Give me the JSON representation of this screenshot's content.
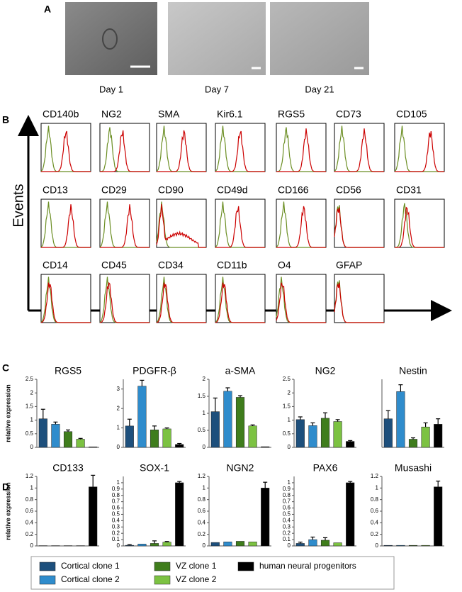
{
  "panel_labels": [
    "A",
    "B",
    "C",
    "D"
  ],
  "timepoints": [
    "Day 1",
    "Day 7",
    "Day 21"
  ],
  "histograms": {
    "y_axis_label": "Events",
    "markers": [
      "CD140b",
      "NG2",
      "SMA",
      "Kir6.1",
      "RGS5",
      "CD73",
      "CD105",
      "CD13",
      "CD29",
      "CD90",
      "CD49d",
      "CD166",
      "CD56",
      "CD31",
      "CD14",
      "CD45",
      "CD34",
      "CD11b",
      "O4",
      "GFAP"
    ]
  },
  "legend": [
    {
      "name": "Cortical clone 1",
      "color": "#1d4f7c"
    },
    {
      "name": "Cortical clone 2",
      "color": "#2f8ccc"
    },
    {
      "name": "VZ clone 1",
      "color": "#3f7d1c"
    },
    {
      "name": "VZ clone 2",
      "color": "#7cc242"
    },
    {
      "name": "human neural progenitors",
      "color": "#000000"
    }
  ],
  "chart_data": [
    {
      "type": "bar",
      "title": "RGS5",
      "ylabel": "relative expression",
      "ylim": [
        0,
        2.5
      ],
      "yticks": [
        0,
        0.5,
        1,
        1.5,
        2,
        2.5
      ],
      "values": [
        1.05,
        0.85,
        0.58,
        0.3,
        0.02
      ],
      "errors": [
        0.35,
        0.08,
        0.06,
        0.03,
        null
      ]
    },
    {
      "type": "bar",
      "title": "PDGFR-β",
      "ylim": [
        0,
        3.5
      ],
      "yticks": [
        0,
        1,
        2,
        3
      ],
      "values": [
        1.1,
        3.15,
        0.9,
        0.95,
        0.15
      ],
      "errors": [
        0.35,
        0.3,
        0.2,
        0.05,
        0.05
      ]
    },
    {
      "type": "bar",
      "title": "a-SMA",
      "ylim": [
        0,
        2
      ],
      "yticks": [
        0,
        0.5,
        1,
        1.5,
        2
      ],
      "values": [
        1.05,
        1.65,
        1.47,
        0.63,
        0.02
      ],
      "errors": [
        0.4,
        0.1,
        0.05,
        0.03,
        null
      ]
    },
    {
      "type": "bar",
      "title": "NG2",
      "ylim": [
        0,
        2.5
      ],
      "yticks": [
        0,
        0.5,
        1,
        1.5,
        2,
        2.5
      ],
      "values": [
        1.02,
        0.8,
        1.07,
        0.95,
        0.22
      ],
      "errors": [
        0.1,
        0.1,
        0.2,
        0.07,
        0.03
      ]
    },
    {
      "type": "bar",
      "title": "Nestin",
      "ylim": [
        0,
        2.5
      ],
      "values": [
        1.05,
        2.05,
        0.3,
        0.75,
        0.85
      ],
      "errors": [
        0.3,
        0.25,
        0.05,
        0.15,
        0.2
      ]
    },
    {
      "type": "bar",
      "title": "CD133",
      "ylabel": "relative expression",
      "ylim": [
        0,
        1.2
      ],
      "yticks": [
        0,
        0.2,
        0.4,
        0.6,
        0.8,
        1,
        1.2
      ],
      "values": [
        0.005,
        0.005,
        0.005,
        0.005,
        1.02
      ],
      "errors": [
        null,
        null,
        null,
        null,
        0.2
      ]
    },
    {
      "type": "bar",
      "title": "SOX-1",
      "ylim": [
        0,
        1.1
      ],
      "yticks": [
        0,
        0.1,
        0.2,
        0.3,
        0.4,
        0.5,
        0.6,
        0.7,
        0.8,
        0.9,
        1
      ],
      "values": [
        0.01,
        0.03,
        0.04,
        0.06,
        1.0
      ],
      "errors": [
        0.01,
        null,
        0.04,
        0.01,
        0.02
      ]
    },
    {
      "type": "bar",
      "title": "NGN2",
      "ylim": [
        0,
        1.2
      ],
      "yticks": [
        0,
        0.2,
        0.4,
        0.6,
        0.8,
        1,
        1.2
      ],
      "values": [
        0.06,
        0.07,
        0.08,
        0.07,
        1.0
      ],
      "errors": [
        null,
        null,
        null,
        null,
        0.1
      ]
    },
    {
      "type": "bar",
      "title": "PAX6",
      "ylim": [
        0,
        1.1
      ],
      "yticks": [
        0,
        0.1,
        0.2,
        0.3,
        0.4,
        0.5,
        0.6,
        0.7,
        0.8,
        0.9,
        1
      ],
      "values": [
        0.04,
        0.1,
        0.09,
        0.05,
        1.0
      ],
      "errors": [
        0.02,
        0.04,
        0.04,
        null,
        0.02
      ]
    },
    {
      "type": "bar",
      "title": "Musashi",
      "ylim": [
        0,
        1.2
      ],
      "yticks": [
        0,
        0.2,
        0.4,
        0.6,
        0.8,
        1,
        1.2
      ],
      "values": [
        0.01,
        0.01,
        0.01,
        0.01,
        1.02
      ],
      "errors": [
        null,
        null,
        null,
        null,
        0.1
      ]
    }
  ]
}
